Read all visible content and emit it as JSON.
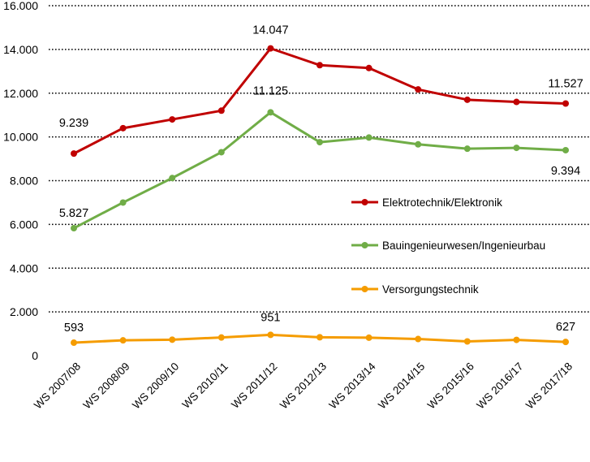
{
  "chart_data": {
    "type": "line",
    "categories": [
      "WS 2007/08",
      "WS 2008/09",
      "WS 2009/10",
      "WS 2010/11",
      "WS 2011/12",
      "WS 2012/13",
      "WS 2013/14",
      "WS 2014/15",
      "WS 2015/16",
      "WS 2016/17",
      "WS 2017/18"
    ],
    "ylim": [
      0,
      16000
    ],
    "yticks": [
      0,
      2000,
      4000,
      6000,
      8000,
      10000,
      12000,
      14000,
      16000
    ],
    "ytick_labels": [
      "0",
      "2.000",
      "4.000",
      "6.000",
      "8.000",
      "10.000",
      "12.000",
      "14.000",
      "16.000"
    ],
    "grid": "horizontal dotted",
    "legend_position": "right",
    "series": [
      {
        "name": "Elektrotechnik/Elektronik",
        "color": "#c00000",
        "values": [
          9239,
          10400,
          10800,
          11200,
          14047,
          13280,
          13150,
          12170,
          11700,
          11600,
          11527
        ],
        "labels": [
          {
            "index": 0,
            "text": "9.239"
          },
          {
            "index": 4,
            "text": "14.047"
          },
          {
            "index": 10,
            "text": "11.527"
          }
        ]
      },
      {
        "name": "Bauingenieurwesen/Ingenieurbau",
        "color": "#70ad47",
        "values": [
          5827,
          7000,
          8120,
          9300,
          11125,
          9760,
          9970,
          9660,
          9460,
          9500,
          9394
        ],
        "labels": [
          {
            "index": 0,
            "text": "5.827"
          },
          {
            "index": 4,
            "text": "11.125"
          },
          {
            "index": 10,
            "text": "9.394"
          }
        ]
      },
      {
        "name": "Versorgungstechnik",
        "color": "#f59c00",
        "values": [
          593,
          700,
          730,
          830,
          951,
          840,
          820,
          760,
          650,
          720,
          627
        ],
        "labels": [
          {
            "index": 0,
            "text": "593"
          },
          {
            "index": 4,
            "text": "951"
          },
          {
            "index": 10,
            "text": "627"
          }
        ]
      }
    ]
  }
}
